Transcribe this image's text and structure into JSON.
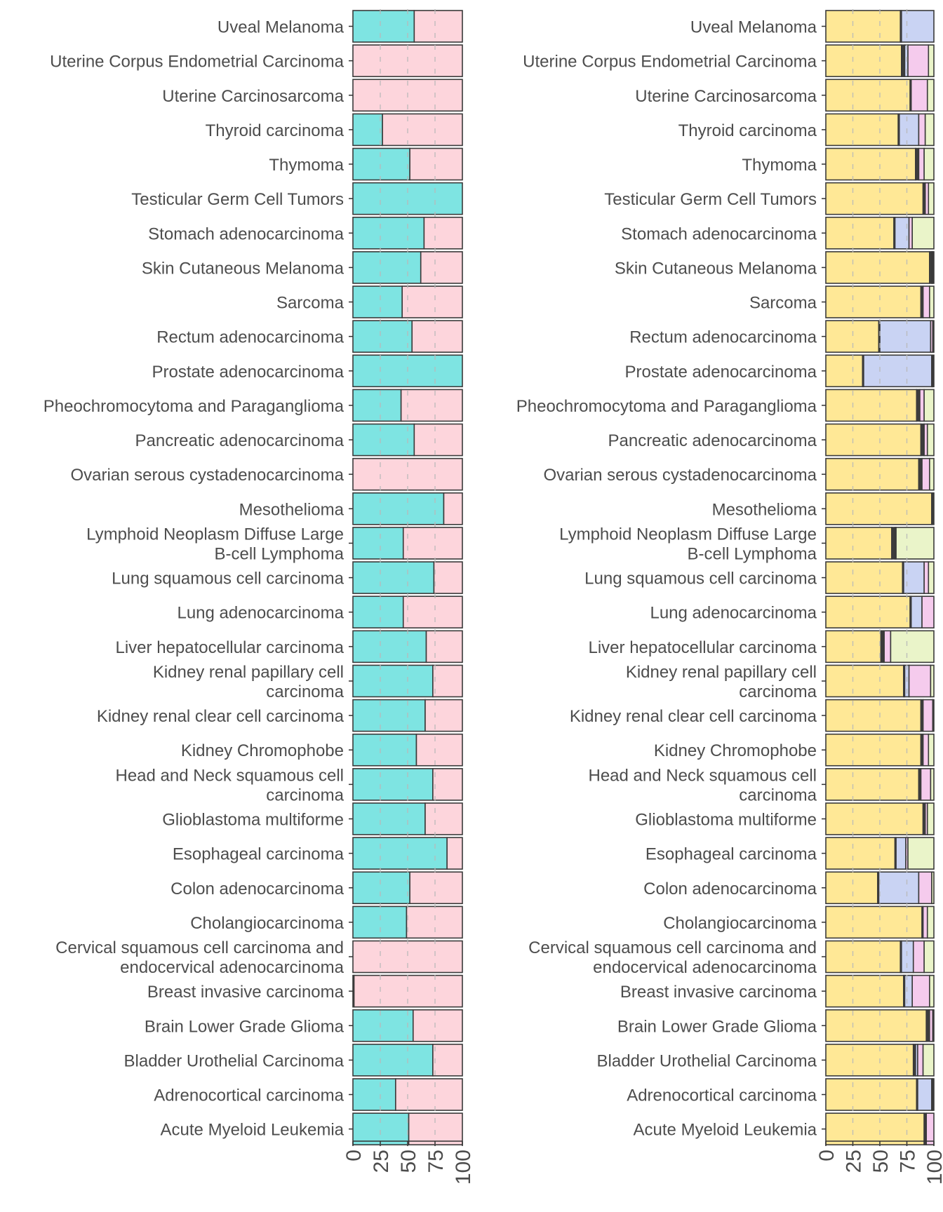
{
  "chart_data": [
    {
      "type": "bar",
      "orientation": "horizontal",
      "stacked": true,
      "title": "",
      "xlabel": "",
      "ylabel": "",
      "xlim": [
        0,
        100
      ],
      "x_ticks": [
        "0",
        "25",
        "50",
        "75",
        "100"
      ],
      "grid": "dashed vertical lines at 25, 50, 75",
      "legend": "none",
      "categories": [
        "Uveal Melanoma",
        "Uterine Corpus Endometrial Carcinoma",
        "Uterine Carcinosarcoma",
        "Thyroid carcinoma",
        "Thymoma",
        "Testicular Germ Cell Tumors",
        "Stomach adenocarcinoma",
        "Skin Cutaneous Melanoma",
        "Sarcoma",
        "Rectum adenocarcinoma",
        "Prostate adenocarcinoma",
        "Pheochromocytoma and Paraganglioma",
        "Pancreatic adenocarcinoma",
        "Ovarian serous cystadenocarcinoma",
        "Mesothelioma",
        "Lymphoid Neoplasm Diffuse Large\nB-cell Lymphoma",
        "Lung squamous cell carcinoma",
        "Lung adenocarcinoma",
        "Liver hepatocellular carcinoma",
        "Kidney renal papillary cell\ncarcinoma",
        "Kidney renal clear cell carcinoma",
        "Kidney Chromophobe",
        "Head and Neck squamous cell\ncarcinoma",
        "Glioblastoma multiforme",
        "Esophageal carcinoma",
        "Colon adenocarcinoma",
        "Cholangiocarcinoma",
        "Cervical squamous cell carcinoma and\nendocervical adenocarcinoma",
        "Breast invasive carcinoma",
        "Brain Lower Grade Glioma",
        "Bladder Urothelial Carcinoma",
        "Adrenocortical carcinoma",
        "Acute Myeloid Leukemia"
      ],
      "series": [
        {
          "color": "#7ee4e2",
          "values": [
            56,
            0,
            0,
            27,
            52,
            100,
            65,
            62,
            45,
            54,
            100,
            44,
            56,
            0,
            83,
            46,
            74,
            46,
            67,
            73,
            66,
            58,
            73,
            66,
            86,
            52,
            49,
            0,
            1,
            55,
            73,
            39,
            51
          ]
        },
        {
          "color": "#fdd5dc",
          "values": [
            44,
            100,
            100,
            73,
            48,
            0,
            35,
            38,
            55,
            46,
            0,
            56,
            44,
            100,
            17,
            54,
            26,
            54,
            33,
            27,
            34,
            42,
            27,
            34,
            14,
            48,
            51,
            100,
            99,
            45,
            27,
            61,
            49
          ]
        }
      ]
    },
    {
      "type": "bar",
      "orientation": "horizontal",
      "stacked": true,
      "title": "",
      "xlabel": "",
      "ylabel": "",
      "xlim": [
        0,
        100
      ],
      "x_ticks": [
        "0",
        "25",
        "50",
        "75",
        "100"
      ],
      "grid": "dashed vertical lines at 25, 50, 75",
      "legend": "none",
      "categories": [
        "Uveal Melanoma",
        "Uterine Corpus Endometrial Carcinoma",
        "Uterine Carcinosarcoma",
        "Thyroid carcinoma",
        "Thymoma",
        "Testicular Germ Cell Tumors",
        "Stomach adenocarcinoma",
        "Skin Cutaneous Melanoma",
        "Sarcoma",
        "Rectum adenocarcinoma",
        "Prostate adenocarcinoma",
        "Pheochromocytoma and Paraganglioma",
        "Pancreatic adenocarcinoma",
        "Ovarian serous cystadenocarcinoma",
        "Mesothelioma",
        "Lymphoid Neoplasm Diffuse Large\nB-cell Lymphoma",
        "Lung squamous cell carcinoma",
        "Lung adenocarcinoma",
        "Liver hepatocellular carcinoma",
        "Kidney renal papillary cell\ncarcinoma",
        "Kidney renal clear cell carcinoma",
        "Kidney Chromophobe",
        "Head and Neck squamous cell\ncarcinoma",
        "Glioblastoma multiforme",
        "Esophageal carcinoma",
        "Colon adenocarcinoma",
        "Cholangiocarcinoma",
        "Cervical squamous cell carcinoma and\nendocervical adenocarcinoma",
        "Breast invasive carcinoma",
        "Brain Lower Grade Glioma",
        "Bladder Urothelial Carcinoma",
        "Adrenocortical carcinoma",
        "Acute Myeloid Leukemia"
      ],
      "series": [
        {
          "color": "#ffe896",
          "values": [
            69,
            70,
            78,
            67,
            83,
            90,
            63,
            96,
            88,
            49,
            34,
            84,
            88,
            86,
            98,
            61,
            71,
            78,
            51,
            72,
            88,
            88,
            86,
            90,
            64,
            48,
            89,
            69,
            72,
            93,
            81,
            84,
            91
          ]
        },
        {
          "color": "#3d3d3d",
          "values": [
            1,
            3,
            1,
            1,
            3,
            2,
            1,
            2,
            2,
            1,
            1,
            3,
            3,
            3,
            2,
            3,
            1,
            1,
            2,
            1,
            2,
            2,
            2,
            2,
            1,
            1,
            1,
            1,
            1,
            3,
            2,
            1,
            2
          ]
        },
        {
          "color": "#c9d3f3",
          "values": [
            30,
            3,
            0,
            18,
            0,
            0,
            13,
            0,
            0,
            47,
            63,
            0,
            0,
            0,
            0,
            0,
            19,
            10,
            1,
            4,
            0,
            0,
            0,
            0,
            9,
            37,
            0,
            11,
            7,
            0,
            2,
            13,
            0
          ]
        },
        {
          "color": "#f5cbed",
          "values": [
            0,
            19,
            15,
            6,
            5,
            3,
            3,
            1,
            6,
            2,
            1,
            4,
            3,
            7,
            0,
            1,
            4,
            11,
            6,
            20,
            9,
            5,
            9,
            2,
            2,
            12,
            4,
            10,
            16,
            3,
            5,
            1,
            7
          ]
        },
        {
          "color": "#eaf4c9",
          "values": [
            0,
            5,
            6,
            8,
            9,
            5,
            20,
            1,
            4,
            1,
            1,
            9,
            6,
            4,
            0,
            35,
            5,
            0,
            40,
            3,
            1,
            5,
            3,
            6,
            24,
            2,
            6,
            9,
            4,
            1,
            10,
            1,
            0
          ]
        }
      ]
    }
  ]
}
